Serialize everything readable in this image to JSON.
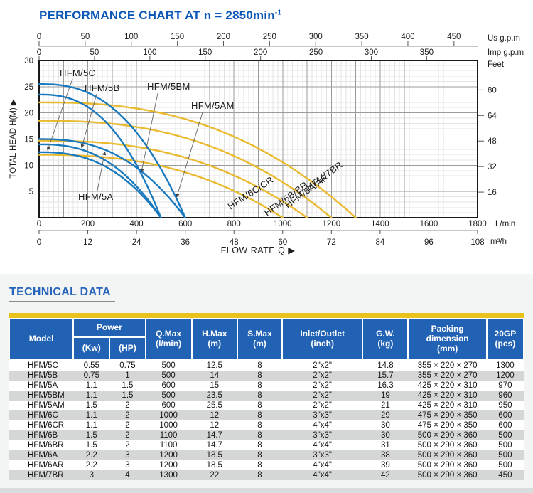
{
  "chart": {
    "title_main": "PERFORMANCE CHART AT n = 2850min",
    "title_sup": "-1"
  },
  "chart_data": {
    "type": "line",
    "title": "PERFORMANCE CHART AT n = 2850min⁻¹",
    "x_label": "FLOW RATE Q",
    "y_label": "TOTAL HEAD H(M)",
    "x_range_lmin": [
      0,
      1800
    ],
    "y_range_m": [
      0,
      30
    ],
    "grid": "major+minor",
    "legend_position": "labels-on-curves",
    "axes": {
      "us_gpm": {
        "label": "Us g.p.m",
        "ticks": [
          0,
          50,
          100,
          150,
          200,
          250,
          300,
          350,
          400,
          450
        ],
        "lmin_per_unit": 3.785
      },
      "imp_gpm": {
        "label": "Imp g.p.m",
        "ticks": [
          0,
          50,
          100,
          150,
          200,
          250,
          300,
          350
        ],
        "lmin_per_unit": 4.546
      },
      "lmin": {
        "label": "L/min",
        "ticks": [
          0,
          200,
          400,
          600,
          800,
          1000,
          1200,
          1400,
          1600,
          1800
        ]
      },
      "m3h": {
        "label": "m³/h",
        "ticks": [
          0,
          12,
          24,
          36,
          48,
          60,
          72,
          84,
          96,
          108
        ]
      },
      "head_m": {
        "label": "TOTAL HEAD H(M)",
        "ticks": [
          5,
          10,
          15,
          20,
          25,
          30
        ]
      },
      "feet": {
        "label": "Feet",
        "ticks": [
          16,
          32,
          48,
          64,
          80
        ],
        "m_per_unit": 0.3048
      }
    },
    "series": [
      {
        "name": "HFM/5C",
        "color": "blue",
        "shutoff_head_m": 12.5,
        "max_flow_lmin": 500
      },
      {
        "name": "HFM/5B",
        "color": "blue",
        "shutoff_head_m": 14,
        "max_flow_lmin": 500
      },
      {
        "name": "HFM/5A",
        "color": "blue",
        "shutoff_head_m": 15,
        "max_flow_lmin": 600
      },
      {
        "name": "HFM/5BM",
        "color": "blue",
        "shutoff_head_m": 23.5,
        "max_flow_lmin": 500
      },
      {
        "name": "HFM/5AM",
        "color": "blue",
        "shutoff_head_m": 25.5,
        "max_flow_lmin": 600
      },
      {
        "name": "HFM/6C/CR",
        "color": "yellow",
        "shutoff_head_m": 12,
        "max_flow_lmin": 1000
      },
      {
        "name": "HFM/6B/BR",
        "color": "yellow",
        "shutoff_head_m": 14.7,
        "max_flow_lmin": 1100
      },
      {
        "name": "HFM/6A/AR",
        "color": "yellow",
        "shutoff_head_m": 18.5,
        "max_flow_lmin": 1200
      },
      {
        "name": "HFM/7BR",
        "color": "yellow",
        "shutoff_head_m": 22,
        "max_flow_lmin": 1300
      }
    ],
    "colors": {
      "blue": "#1a7abf",
      "yellow": "#eaba2e"
    }
  },
  "tech": {
    "heading": "TECHNICAL DATA",
    "table": {
      "columns": {
        "model": "Model",
        "power": "Power",
        "kw": "(Kw)",
        "hp": "(HP)",
        "qmax": "Q.Max",
        "qmax_unit": "(l/min)",
        "hmax": "H.Max",
        "hmax_unit": "(m)",
        "smax": "S.Max",
        "smax_unit": "(m)",
        "inlet": "Inlet/Outlet",
        "inlet_unit": "(inch)",
        "gw": "G.W.",
        "gw_unit": "(kg)",
        "packing_1": "Packing",
        "packing_2": "dimension",
        "packing_unit": "(mm)",
        "gp": "20GP",
        "gp_unit": "(pcs)"
      },
      "rows": [
        [
          "HFM/5C",
          "0.55",
          "0.75",
          "500",
          "12.5",
          "8",
          "2\"x2\"",
          "14.8",
          "355 × 220 × 270",
          "1300"
        ],
        [
          "HFM/5B",
          "0.75",
          "1",
          "500",
          "14",
          "8",
          "2\"x2\"",
          "15.7",
          "355 × 220 × 270",
          "1200"
        ],
        [
          "HFM/5A",
          "1.1",
          "1.5",
          "600",
          "15",
          "8",
          "2\"x2\"",
          "16.3",
          "425 × 220 × 310",
          "970"
        ],
        [
          "HFM/5BM",
          "1.1",
          "1.5",
          "500",
          "23.5",
          "8",
          "2\"x2\"",
          "19",
          "425 × 220 × 310",
          "960"
        ],
        [
          "HFM/5AM",
          "1.5",
          "2",
          "600",
          "25.5",
          "8",
          "2\"x2\"",
          "21",
          "425 × 220 × 310",
          "950"
        ],
        [
          "HFM/6C",
          "1.1",
          "2",
          "1000",
          "12",
          "8",
          "3\"x3\"",
          "29",
          "475 × 290 × 350",
          "600"
        ],
        [
          "HFM/6CR",
          "1.1",
          "2",
          "1000",
          "12",
          "8",
          "4\"x4\"",
          "30",
          "475 × 290 × 350",
          "600"
        ],
        [
          "HFM/6B",
          "1.5",
          "2",
          "1100",
          "14.7",
          "8",
          "3\"x3\"",
          "30",
          "500 × 290 × 360",
          "500"
        ],
        [
          "HFM/6BR",
          "1.5",
          "2",
          "1100",
          "14.7",
          "8",
          "4\"x4\"",
          "31",
          "500 × 290 × 360",
          "500"
        ],
        [
          "HFM/6A",
          "2.2",
          "3",
          "1200",
          "18.5",
          "8",
          "3\"x3\"",
          "38",
          "500 × 290 × 360",
          "500"
        ],
        [
          "HFM/6AR",
          "2.2",
          "3",
          "1200",
          "18.5",
          "8",
          "4\"x4\"",
          "39",
          "500 × 290 × 360",
          "500"
        ],
        [
          "HFM/7BR",
          "3",
          "4",
          "1300",
          "22",
          "8",
          "4\"x4\"",
          "42",
          "500 × 290 × 360",
          "450"
        ]
      ]
    }
  }
}
